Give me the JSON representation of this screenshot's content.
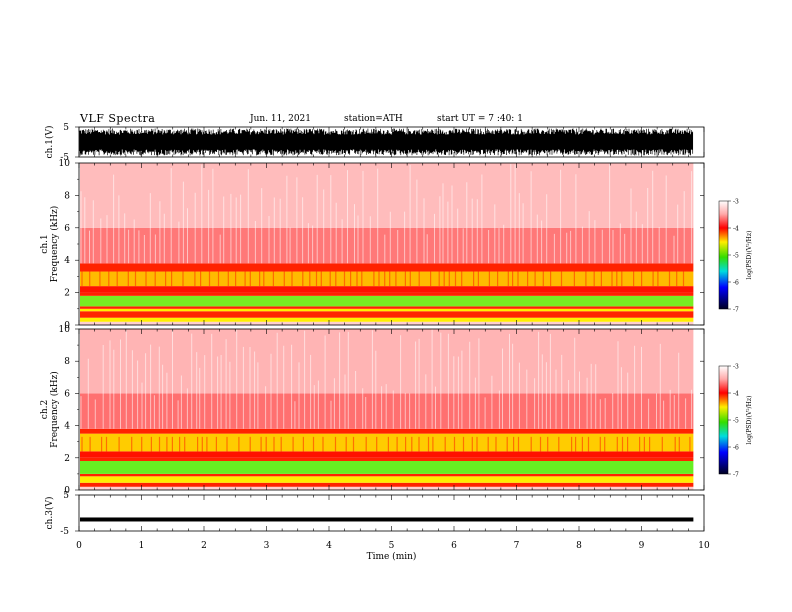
{
  "header": {
    "title": "VLF  Spectra",
    "date": "Jun. 11, 2021",
    "station": "station=ATH",
    "start": "start  UT  =   7 :40: 1"
  },
  "chart_data": [
    {
      "type": "line",
      "ylabel": "ch.1(V)",
      "ylim": [
        -5,
        5
      ],
      "ytick_labels": [
        "5",
        "-5"
      ],
      "x_range_min": [
        0,
        9.83
      ],
      "signal_band": [
        -4.5,
        4.5
      ]
    },
    {
      "type": "heatmap",
      "ylabel_top": "ch.1",
      "ylabel": "Frequency  (kHz)",
      "ylim": [
        0,
        10
      ],
      "yticks": [
        "0",
        "2",
        "4",
        "6",
        "8",
        "10"
      ],
      "x_range_min": [
        0,
        9.83
      ],
      "colorbar": {
        "label": "log(PSD)(V²/Hz)",
        "ticks": [
          "-3",
          "-4",
          "-5",
          "-6",
          "-7"
        ],
        "range": [
          -7,
          -3
        ]
      },
      "bands": [
        {
          "from_khz": 0.0,
          "to_khz": 0.2,
          "color": "#ffd0d0"
        },
        {
          "from_khz": 0.2,
          "to_khz": 0.45,
          "color": "#ffee00"
        },
        {
          "from_khz": 0.45,
          "to_khz": 0.85,
          "color": "#ff2200"
        },
        {
          "from_khz": 0.85,
          "to_khz": 1.0,
          "color": "#ffee00"
        },
        {
          "from_khz": 1.0,
          "to_khz": 1.15,
          "color": "#ff2200"
        },
        {
          "from_khz": 1.15,
          "to_khz": 1.8,
          "color": "#77ee22"
        },
        {
          "from_khz": 1.8,
          "to_khz": 2.0,
          "color": "#ff2200"
        },
        {
          "from_khz": 2.0,
          "to_khz": 2.4,
          "color": "#ff1100"
        },
        {
          "from_khz": 2.4,
          "to_khz": 3.3,
          "color": "#ffbb00"
        },
        {
          "from_khz": 3.3,
          "to_khz": 3.8,
          "color": "#ff2200"
        },
        {
          "from_khz": 3.8,
          "to_khz": 6.0,
          "color": "#ff7878"
        },
        {
          "from_khz": 6.0,
          "to_khz": 10.0,
          "color": "#ffbcbc"
        }
      ]
    },
    {
      "type": "heatmap",
      "ylabel_top": "ch.2",
      "ylabel": "Frequency  (kHz)",
      "ylim": [
        0,
        10
      ],
      "yticks": [
        "0",
        "2",
        "4",
        "6",
        "8",
        "10"
      ],
      "x_range_min": [
        0,
        9.83
      ],
      "colorbar": {
        "label": "log(PSD)(V²/Hz)",
        "ticks": [
          "-3",
          "-4",
          "-5",
          "-6",
          "-7"
        ],
        "range": [
          -7,
          -3
        ]
      },
      "bands": [
        {
          "from_khz": 0.0,
          "to_khz": 0.2,
          "color": "#ffd0d0"
        },
        {
          "from_khz": 0.2,
          "to_khz": 0.45,
          "color": "#ff2200"
        },
        {
          "from_khz": 0.45,
          "to_khz": 0.85,
          "color": "#ffee00"
        },
        {
          "from_khz": 0.85,
          "to_khz": 1.0,
          "color": "#ff2200"
        },
        {
          "from_khz": 1.0,
          "to_khz": 1.8,
          "color": "#66ee22"
        },
        {
          "from_khz": 1.8,
          "to_khz": 2.0,
          "color": "#ff2200"
        },
        {
          "from_khz": 2.0,
          "to_khz": 2.4,
          "color": "#ff1100"
        },
        {
          "from_khz": 2.4,
          "to_khz": 3.5,
          "color": "#ffcc00"
        },
        {
          "from_khz": 3.5,
          "to_khz": 3.8,
          "color": "#ff2200"
        },
        {
          "from_khz": 3.8,
          "to_khz": 6.0,
          "color": "#ff7070"
        },
        {
          "from_khz": 6.0,
          "to_khz": 10.0,
          "color": "#ffb4b4"
        }
      ]
    },
    {
      "type": "line",
      "ylabel": "ch.3(V)",
      "ylim": [
        -5,
        5
      ],
      "ytick_labels": [
        "5",
        "-5"
      ],
      "x_range_min": [
        0,
        9.83
      ],
      "signal_level": -1.8,
      "xlabel": "Time  (min)",
      "xlim": [
        0,
        10
      ],
      "xtick_labels": [
        "0",
        "1",
        "2",
        "3",
        "4",
        "5",
        "6",
        "7",
        "8",
        "9",
        "10"
      ]
    }
  ]
}
